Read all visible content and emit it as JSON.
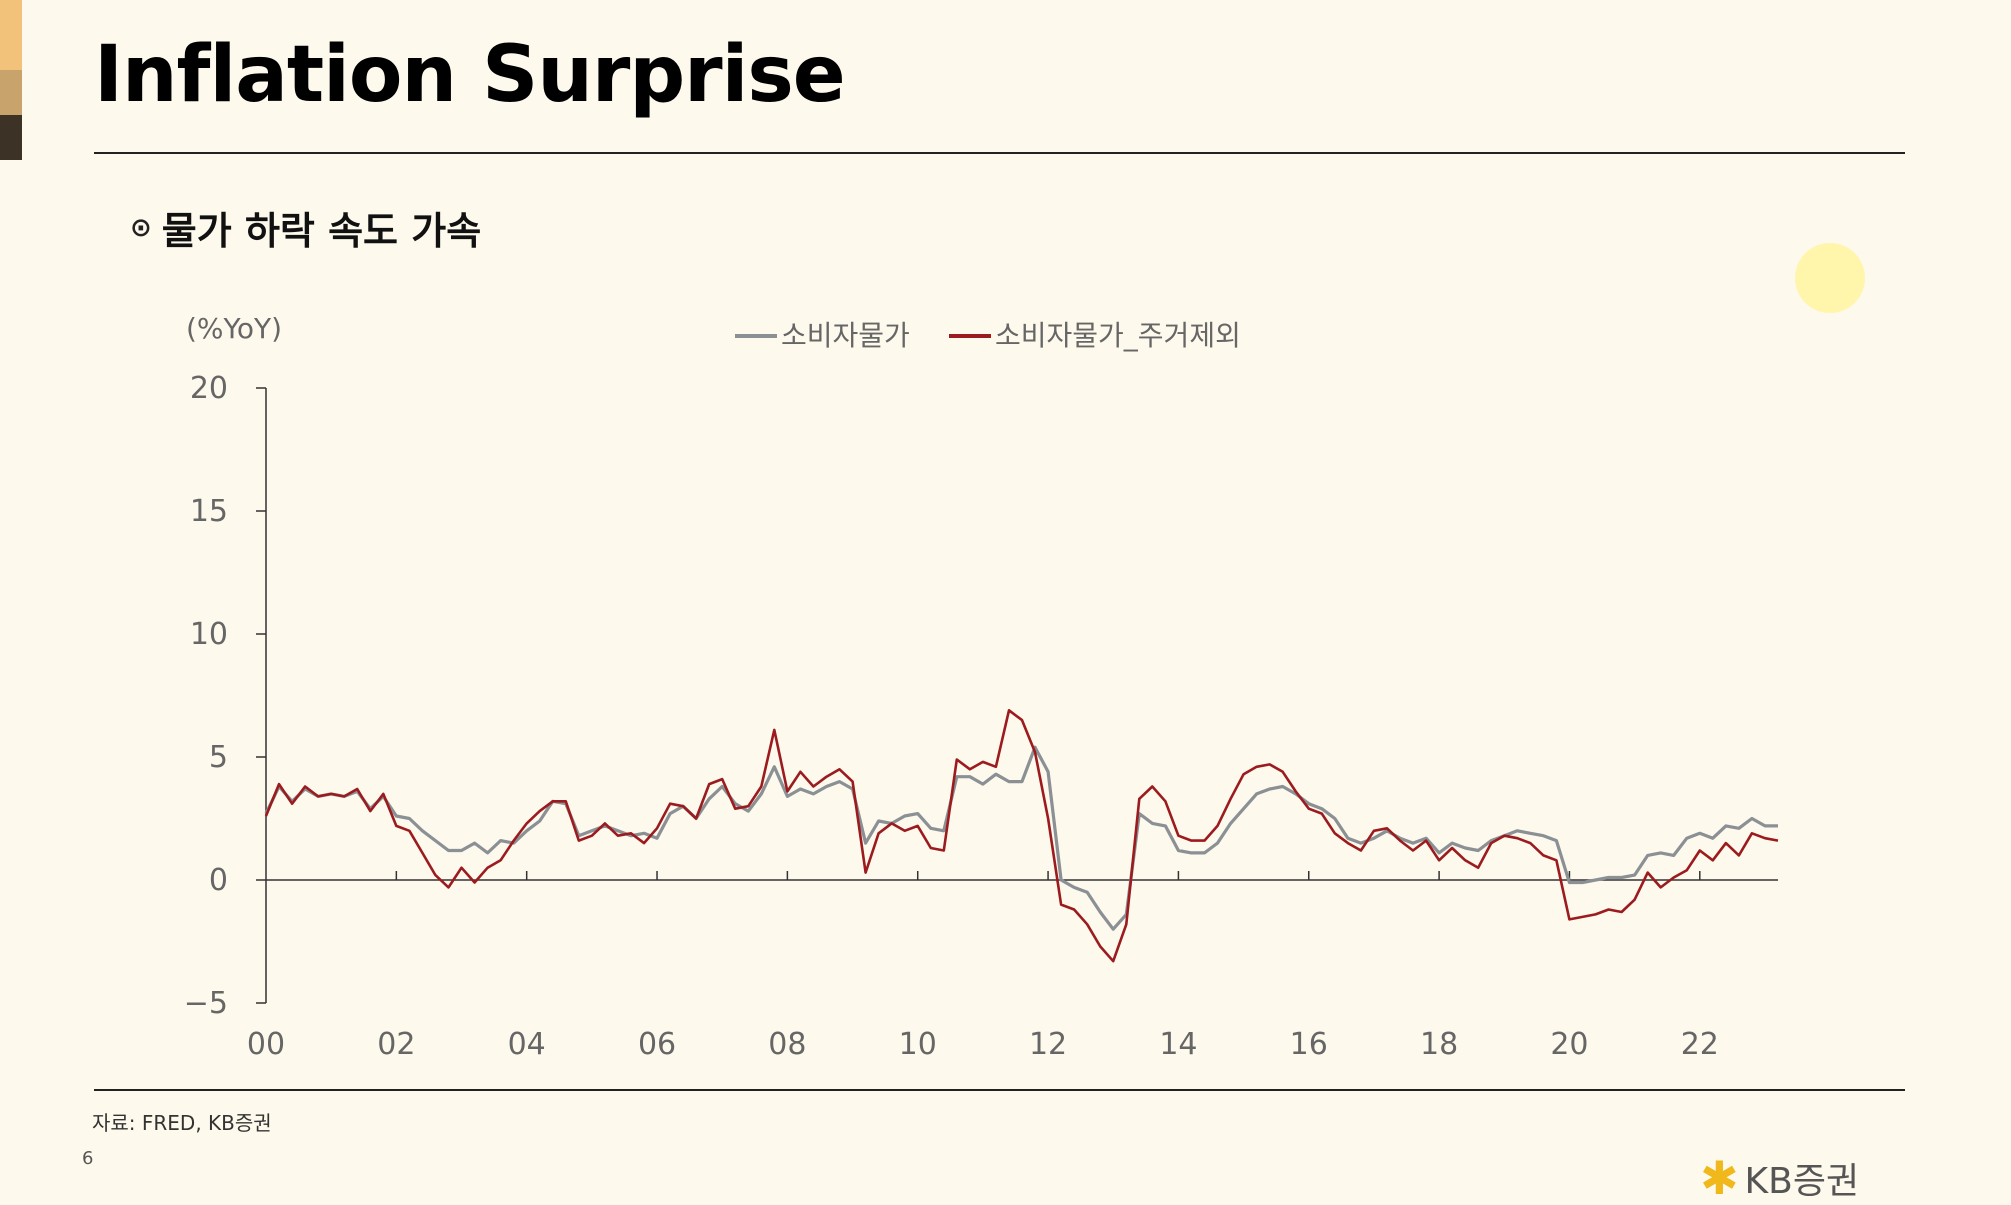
{
  "slide": {
    "title": "Inflation Surprise",
    "subtitle": "물가 하락 속도 가속",
    "bullet": "⊙",
    "source": "자료: FRED, KB증권",
    "page_number": "6",
    "logo_text": "KB증권",
    "deco_colors": [
      "#f2c27a",
      "#c8a36c",
      "#3c3226"
    ]
  },
  "chart_data": {
    "type": "line",
    "ylabel": "(%YoY)",
    "ylim": [
      -5,
      20
    ],
    "yticks": [
      -5,
      0,
      5,
      10,
      15,
      20
    ],
    "xlim": [
      2000,
      2023.2
    ],
    "xticks": [
      2000,
      2002,
      2004,
      2006,
      2008,
      2010,
      2012,
      2014,
      2016,
      2018,
      2020,
      2022
    ],
    "xticklabels": [
      "00",
      "02",
      "04",
      "06",
      "08",
      "10",
      "12",
      "14",
      "16",
      "18",
      "20",
      "22"
    ],
    "legend_position": "top-center",
    "grid": false,
    "series": [
      {
        "name": "소비자물가",
        "color": "#8a9094",
        "points": [
          [
            2000.0,
            2.7
          ],
          [
            2000.2,
            3.8
          ],
          [
            2000.4,
            3.2
          ],
          [
            2000.6,
            3.7
          ],
          [
            2000.8,
            3.4
          ],
          [
            2001.0,
            3.5
          ],
          [
            2001.2,
            3.4
          ],
          [
            2001.4,
            3.6
          ],
          [
            2001.6,
            2.9
          ],
          [
            2001.8,
            3.4
          ],
          [
            2002.0,
            2.6
          ],
          [
            2002.2,
            2.5
          ],
          [
            2002.4,
            2.0
          ],
          [
            2002.6,
            1.6
          ],
          [
            2002.8,
            1.2
          ],
          [
            2003.0,
            1.2
          ],
          [
            2003.2,
            1.5
          ],
          [
            2003.4,
            1.1
          ],
          [
            2003.6,
            1.6
          ],
          [
            2003.8,
            1.5
          ],
          [
            2004.0,
            2.0
          ],
          [
            2004.2,
            2.4
          ],
          [
            2004.4,
            3.2
          ],
          [
            2004.6,
            3.1
          ],
          [
            2004.8,
            1.8
          ],
          [
            2005.0,
            2.0
          ],
          [
            2005.2,
            2.2
          ],
          [
            2005.4,
            2.0
          ],
          [
            2005.6,
            1.8
          ],
          [
            2005.8,
            1.9
          ],
          [
            2006.0,
            1.7
          ],
          [
            2006.2,
            2.7
          ],
          [
            2006.4,
            3.0
          ],
          [
            2006.6,
            2.5
          ],
          [
            2006.8,
            3.3
          ],
          [
            2007.0,
            3.8
          ],
          [
            2007.2,
            3.1
          ],
          [
            2007.4,
            2.8
          ],
          [
            2007.6,
            3.5
          ],
          [
            2007.8,
            4.6
          ],
          [
            2008.0,
            3.4
          ],
          [
            2008.2,
            3.7
          ],
          [
            2008.4,
            3.5
          ],
          [
            2008.6,
            3.8
          ],
          [
            2008.8,
            4.0
          ],
          [
            2009.0,
            3.7
          ],
          [
            2009.2,
            1.5
          ],
          [
            2009.4,
            2.4
          ],
          [
            2009.6,
            2.3
          ],
          [
            2009.8,
            2.6
          ],
          [
            2010.0,
            2.7
          ],
          [
            2010.2,
            2.1
          ],
          [
            2010.4,
            2.0
          ],
          [
            2010.6,
            4.2
          ],
          [
            2010.8,
            4.2
          ],
          [
            2011.0,
            3.9
          ],
          [
            2011.2,
            4.3
          ],
          [
            2011.4,
            4.0
          ],
          [
            2011.6,
            4.0
          ],
          [
            2011.8,
            5.4
          ],
          [
            2012.0,
            4.4
          ],
          [
            2012.2,
            0.0
          ],
          [
            2012.4,
            -0.3
          ],
          [
            2012.6,
            -0.5
          ],
          [
            2012.8,
            -1.3
          ],
          [
            2013.0,
            -2.0
          ],
          [
            2013.2,
            -1.4
          ],
          [
            2013.4,
            2.7
          ],
          [
            2013.6,
            2.3
          ],
          [
            2013.8,
            2.2
          ],
          [
            2014.0,
            1.2
          ],
          [
            2014.2,
            1.1
          ],
          [
            2014.4,
            1.1
          ],
          [
            2014.6,
            1.5
          ],
          [
            2014.8,
            2.3
          ],
          [
            2015.0,
            2.9
          ],
          [
            2015.2,
            3.5
          ],
          [
            2015.4,
            3.7
          ],
          [
            2015.6,
            3.8
          ],
          [
            2015.8,
            3.5
          ],
          [
            2016.0,
            3.1
          ],
          [
            2016.2,
            2.9
          ],
          [
            2016.4,
            2.5
          ],
          [
            2016.6,
            1.7
          ],
          [
            2016.8,
            1.5
          ],
          [
            2017.0,
            1.7
          ],
          [
            2017.2,
            2.0
          ],
          [
            2017.4,
            1.7
          ],
          [
            2017.6,
            1.5
          ],
          [
            2017.8,
            1.7
          ],
          [
            2018.0,
            1.1
          ],
          [
            2018.2,
            1.5
          ],
          [
            2018.4,
            1.3
          ],
          [
            2018.6,
            1.2
          ],
          [
            2018.8,
            1.6
          ],
          [
            2019.0,
            1.8
          ],
          [
            2019.2,
            2.0
          ],
          [
            2019.4,
            1.9
          ],
          [
            2019.6,
            1.8
          ],
          [
            2019.8,
            1.6
          ],
          [
            2020.0,
            -0.1
          ],
          [
            2020.2,
            -0.1
          ],
          [
            2020.4,
            0.0
          ],
          [
            2020.6,
            0.1
          ],
          [
            2020.8,
            0.1
          ],
          [
            2021.0,
            0.2
          ],
          [
            2021.2,
            1.0
          ],
          [
            2021.4,
            1.1
          ],
          [
            2021.6,
            1.0
          ],
          [
            2021.8,
            1.7
          ],
          [
            2022.0,
            1.9
          ],
          [
            2022.2,
            1.7
          ],
          [
            2022.4,
            2.2
          ],
          [
            2022.6,
            2.1
          ],
          [
            2022.8,
            2.5
          ],
          [
            2023.0,
            2.2
          ],
          [
            2023.2,
            2.2
          ]
        ]
      },
      {
        "name": "소비자물가_주거제외",
        "color": "#9b1b1f",
        "points": [
          [
            2000.0,
            2.6
          ],
          [
            2000.2,
            3.9
          ],
          [
            2000.4,
            3.1
          ],
          [
            2000.6,
            3.8
          ],
          [
            2000.8,
            3.4
          ],
          [
            2001.0,
            3.5
          ],
          [
            2001.2,
            3.4
          ],
          [
            2001.4,
            3.7
          ],
          [
            2001.6,
            2.8
          ],
          [
            2001.8,
            3.5
          ],
          [
            2002.0,
            2.2
          ],
          [
            2002.2,
            2.0
          ],
          [
            2002.4,
            1.1
          ],
          [
            2002.6,
            0.2
          ],
          [
            2002.8,
            -0.3
          ],
          [
            2003.0,
            0.5
          ],
          [
            2003.2,
            -0.1
          ],
          [
            2003.4,
            0.5
          ],
          [
            2003.6,
            0.8
          ],
          [
            2003.8,
            1.6
          ],
          [
            2004.0,
            2.3
          ],
          [
            2004.2,
            2.8
          ],
          [
            2004.4,
            3.2
          ],
          [
            2004.6,
            3.2
          ],
          [
            2004.8,
            1.6
          ],
          [
            2005.0,
            1.8
          ],
          [
            2005.2,
            2.3
          ],
          [
            2005.4,
            1.8
          ],
          [
            2005.6,
            1.9
          ],
          [
            2005.8,
            1.5
          ],
          [
            2006.0,
            2.1
          ],
          [
            2006.2,
            3.1
          ],
          [
            2006.4,
            3.0
          ],
          [
            2006.6,
            2.5
          ],
          [
            2006.8,
            3.9
          ],
          [
            2007.0,
            4.1
          ],
          [
            2007.2,
            2.9
          ],
          [
            2007.4,
            3.0
          ],
          [
            2007.6,
            3.8
          ],
          [
            2007.8,
            6.1
          ],
          [
            2008.0,
            3.6
          ],
          [
            2008.2,
            4.4
          ],
          [
            2008.4,
            3.8
          ],
          [
            2008.6,
            4.2
          ],
          [
            2008.8,
            4.5
          ],
          [
            2009.0,
            4.0
          ],
          [
            2009.2,
            0.3
          ],
          [
            2009.4,
            1.9
          ],
          [
            2009.6,
            2.3
          ],
          [
            2009.8,
            2.0
          ],
          [
            2010.0,
            2.2
          ],
          [
            2010.2,
            1.3
          ],
          [
            2010.4,
            1.2
          ],
          [
            2010.6,
            4.9
          ],
          [
            2010.8,
            4.5
          ],
          [
            2011.0,
            4.8
          ],
          [
            2011.2,
            4.6
          ],
          [
            2011.4,
            6.9
          ],
          [
            2011.6,
            6.5
          ],
          [
            2011.8,
            5.2
          ],
          [
            2012.0,
            2.5
          ],
          [
            2012.2,
            -1.0
          ],
          [
            2012.4,
            -1.2
          ],
          [
            2012.6,
            -1.8
          ],
          [
            2012.8,
            -2.7
          ],
          [
            2013.0,
            -3.3
          ],
          [
            2013.2,
            -1.8
          ],
          [
            2013.4,
            3.3
          ],
          [
            2013.6,
            3.8
          ],
          [
            2013.8,
            3.2
          ],
          [
            2014.0,
            1.8
          ],
          [
            2014.2,
            1.6
          ],
          [
            2014.4,
            1.6
          ],
          [
            2014.6,
            2.2
          ],
          [
            2014.8,
            3.3
          ],
          [
            2015.0,
            4.3
          ],
          [
            2015.2,
            4.6
          ],
          [
            2015.4,
            4.7
          ],
          [
            2015.6,
            4.4
          ],
          [
            2015.8,
            3.6
          ],
          [
            2016.0,
            2.9
          ],
          [
            2016.2,
            2.7
          ],
          [
            2016.4,
            1.9
          ],
          [
            2016.6,
            1.5
          ],
          [
            2016.8,
            1.2
          ],
          [
            2017.0,
            2.0
          ],
          [
            2017.2,
            2.1
          ],
          [
            2017.4,
            1.6
          ],
          [
            2017.6,
            1.2
          ],
          [
            2017.8,
            1.6
          ],
          [
            2018.0,
            0.8
          ],
          [
            2018.2,
            1.3
          ],
          [
            2018.4,
            0.8
          ],
          [
            2018.6,
            0.5
          ],
          [
            2018.8,
            1.5
          ],
          [
            2019.0,
            1.8
          ],
          [
            2019.2,
            1.7
          ],
          [
            2019.4,
            1.5
          ],
          [
            2019.6,
            1.0
          ],
          [
            2019.8,
            0.8
          ],
          [
            2020.0,
            -1.6
          ],
          [
            2020.2,
            -1.5
          ],
          [
            2020.4,
            -1.4
          ],
          [
            2020.6,
            -1.2
          ],
          [
            2020.8,
            -1.3
          ],
          [
            2021.0,
            -0.8
          ],
          [
            2021.2,
            0.3
          ],
          [
            2021.4,
            -0.3
          ],
          [
            2021.6,
            0.1
          ],
          [
            2021.8,
            0.4
          ],
          [
            2022.0,
            1.2
          ],
          [
            2022.2,
            0.8
          ],
          [
            2022.4,
            1.5
          ],
          [
            2022.6,
            1.0
          ],
          [
            2022.8,
            1.9
          ],
          [
            2023.0,
            1.7
          ],
          [
            2023.2,
            1.6
          ]
        ]
      }
    ]
  }
}
